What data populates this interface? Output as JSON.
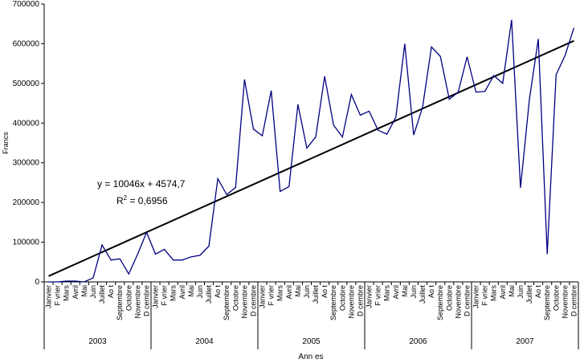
{
  "chart_data": {
    "type": "line",
    "y_label": "Francs",
    "x_label": "Ann es",
    "categories": [
      "Janvier",
      "F vrier",
      "Mars",
      "Avril",
      "Mai",
      "Juin",
      "Juillet",
      "Ao t",
      "Septembre",
      "Octobre",
      "Novembre",
      "D cembre",
      "Janvier",
      "F vrier",
      "Mars",
      "Avril",
      "Mai",
      "Juin",
      "Juillet",
      "Ao t",
      "Septembre",
      "Octobre",
      "Novembre",
      "D cembre",
      "Janvier",
      "F vrier",
      "Mars",
      "Avril",
      "Mai",
      "Juin",
      "Juillet",
      "Ao t",
      "Septembre",
      "Octobre",
      "Novembre",
      "D cembre",
      "Janvier",
      "F vrier",
      "Mars",
      "Avril",
      "Mai",
      "Juin",
      "Juillet",
      "Ao t",
      "Septembre",
      "Octobre",
      "Novembre",
      "D cembre",
      "Janvier",
      "F vrier",
      "Mars",
      "Avril",
      "Mai",
      "Juin",
      "Juillet",
      "Ao t",
      "Septembre",
      "Octobre",
      "Novembre",
      "D cembre"
    ],
    "years": [
      "2003",
      "2004",
      "2005",
      "2006",
      "2007"
    ],
    "series": [
      {
        "color": "#000080",
        "values": [
          0,
          0,
          2000,
          2000,
          0,
          10000,
          93000,
          55000,
          58000,
          20000,
          70000,
          125000,
          70000,
          82000,
          55000,
          55000,
          63000,
          67000,
          90000,
          260000,
          220000,
          238000,
          510000,
          385000,
          368000,
          482000,
          228000,
          240000,
          447000,
          337000,
          365000,
          518000,
          395000,
          365000,
          472000,
          420000,
          430000,
          382000,
          372000,
          415000,
          600000,
          370000,
          440000,
          592000,
          568000,
          460000,
          478000,
          567000,
          478000,
          480000,
          520000,
          500000,
          660000,
          237000,
          460000,
          612000,
          70000,
          522000,
          570000,
          640000
        ]
      }
    ],
    "trendline": {
      "color": "#000000",
      "values": [
        14600,
        607300
      ],
      "equation": "y = 10046x + 4574,7",
      "r_squared": {
        "base": "R",
        "sup": "2",
        "rest": " = 0,6956"
      }
    },
    "ylim": [
      0,
      700000
    ],
    "yticks": [
      0,
      100000,
      200000,
      300000,
      400000,
      500000,
      600000,
      700000
    ]
  }
}
